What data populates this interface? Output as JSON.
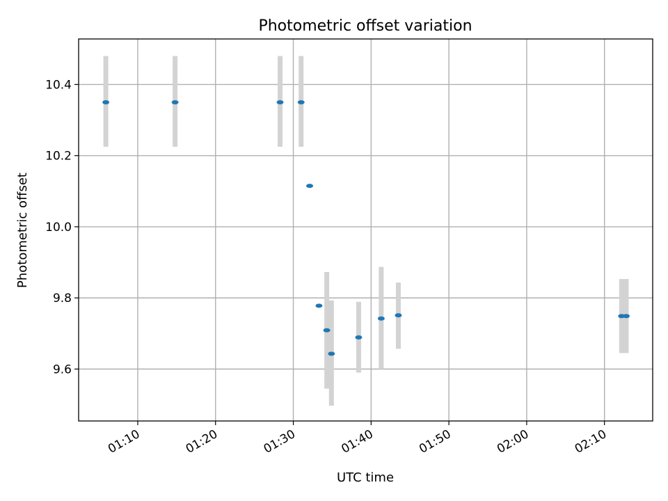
{
  "chart_data": {
    "type": "scatter",
    "title": "Photometric offset variation",
    "xlabel": "UTC time",
    "ylabel": "Photometric offset",
    "x_tick_labels": [
      "01:10",
      "01:20",
      "01:30",
      "01:40",
      "01:50",
      "02:00",
      "02:10"
    ],
    "x_tick_minutes": [
      70,
      80,
      90,
      100,
      110,
      120,
      130
    ],
    "y_tick_labels": [
      "9.6",
      "9.8",
      "10.0",
      "10.2",
      "10.4"
    ],
    "y_ticks": [
      9.6,
      9.8,
      10.0,
      10.2,
      10.4
    ],
    "xlim": [
      "01:02:24",
      "02:16:12"
    ],
    "ylim": [
      9.454,
      10.528
    ],
    "grid": true,
    "marker_color": "#1f77b4",
    "errorbar_color": "#d3d3d3",
    "points": [
      {
        "time": "01:05:54",
        "y": 10.35,
        "err_low": 10.225,
        "err_high": 10.48
      },
      {
        "time": "01:14:48",
        "y": 10.35,
        "err_low": 10.225,
        "err_high": 10.48
      },
      {
        "time": "01:28:18",
        "y": 10.35,
        "err_low": 10.225,
        "err_high": 10.48
      },
      {
        "time": "01:31:00",
        "y": 10.35,
        "err_low": 10.225,
        "err_high": 10.48
      },
      {
        "time": "01:32:06",
        "y": 10.115,
        "err_low": null,
        "err_high": null
      },
      {
        "time": "01:33:18",
        "y": 9.778,
        "err_low": null,
        "err_high": null
      },
      {
        "time": "01:34:18",
        "y": 9.709,
        "err_low": 9.545,
        "err_high": 9.873
      },
      {
        "time": "01:34:54",
        "y": 9.643,
        "err_low": 9.497,
        "err_high": 9.793
      },
      {
        "time": "01:38:24",
        "y": 9.689,
        "err_low": 9.59,
        "err_high": 9.789
      },
      {
        "time": "01:41:18",
        "y": 9.742,
        "err_low": 9.6,
        "err_high": 9.887
      },
      {
        "time": "01:43:30",
        "y": 9.751,
        "err_low": 9.657,
        "err_high": 9.843
      },
      {
        "time": "02:12:12",
        "y": 9.749,
        "err_low": 9.645,
        "err_high": 9.853
      },
      {
        "time": "02:12:48",
        "y": 9.749,
        "err_low": 9.645,
        "err_high": 9.853
      }
    ]
  }
}
